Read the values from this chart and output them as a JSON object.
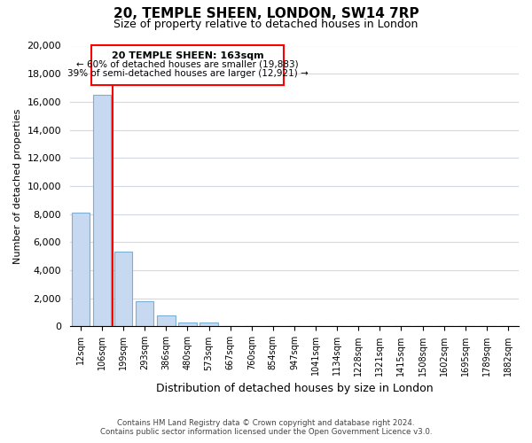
{
  "title": "20, TEMPLE SHEEN, LONDON, SW14 7RP",
  "subtitle": "Size of property relative to detached houses in London",
  "xlabel": "Distribution of detached houses by size in London",
  "ylabel": "Number of detached properties",
  "bar_labels": [
    "12sqm",
    "106sqm",
    "199sqm",
    "293sqm",
    "386sqm",
    "480sqm",
    "573sqm",
    "667sqm",
    "760sqm",
    "854sqm",
    "947sqm",
    "1041sqm",
    "1134sqm",
    "1228sqm",
    "1321sqm",
    "1415sqm",
    "1508sqm",
    "1602sqm",
    "1695sqm",
    "1789sqm",
    "1882sqm"
  ],
  "bar_values": [
    8100,
    16500,
    5300,
    1800,
    800,
    300,
    300,
    0,
    0,
    0,
    0,
    0,
    0,
    0,
    0,
    0,
    0,
    0,
    0,
    0,
    0
  ],
  "bar_color": "#c6d9f1",
  "bar_edge_color": "#7bafd4",
  "vline_color": "red",
  "vline_pos": 1.5,
  "annotation_title": "20 TEMPLE SHEEN: 163sqm",
  "annotation_line1": "← 60% of detached houses are smaller (19,883)",
  "annotation_line2": "39% of semi-detached houses are larger (12,921) →",
  "ylim": [
    0,
    20000
  ],
  "yticks": [
    0,
    2000,
    4000,
    6000,
    8000,
    10000,
    12000,
    14000,
    16000,
    18000,
    20000
  ],
  "footer_line1": "Contains HM Land Registry data © Crown copyright and database right 2024.",
  "footer_line2": "Contains public sector information licensed under the Open Government Licence v3.0.",
  "bg_color": "#ffffff",
  "grid_color": "#d0d8e8"
}
